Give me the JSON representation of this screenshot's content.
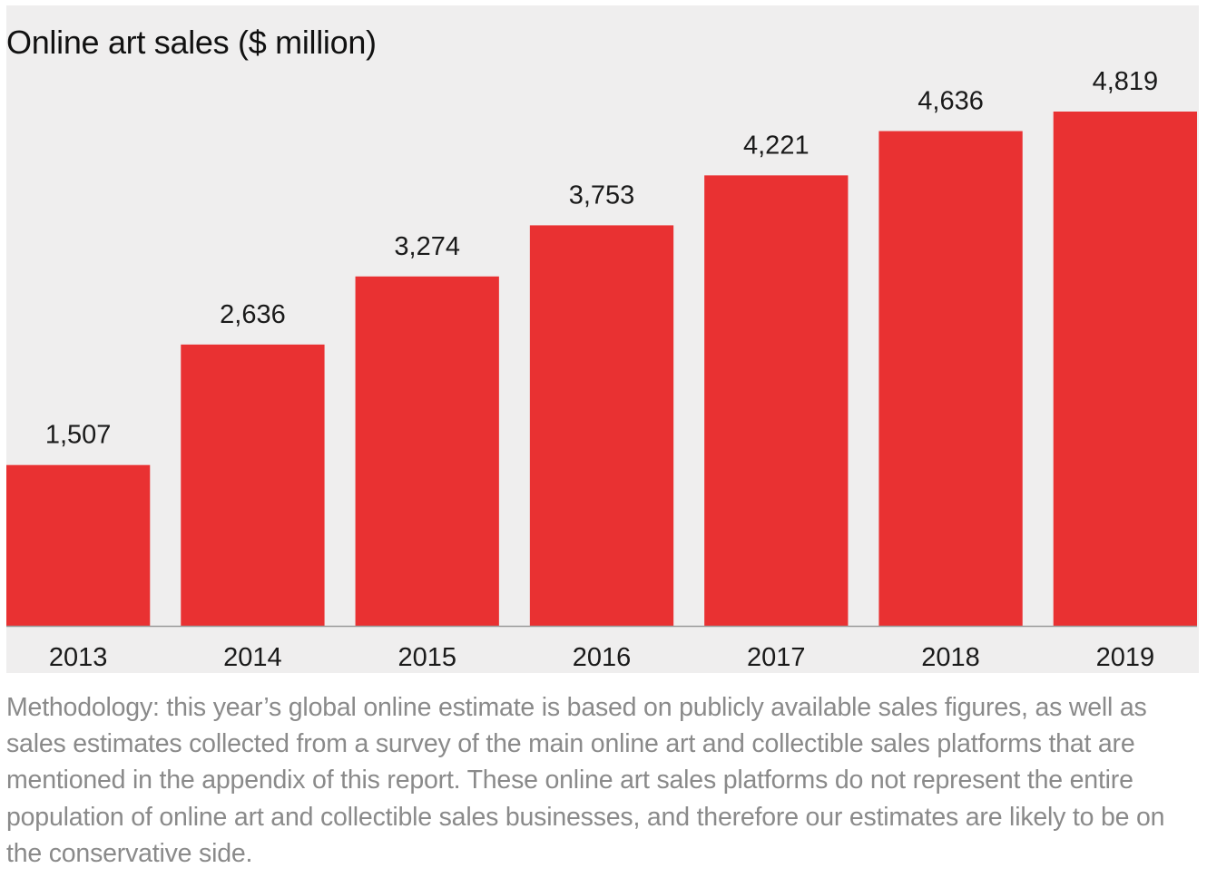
{
  "chart_data": {
    "type": "bar",
    "title": "Online art sales ($ million)",
    "categories": [
      "2013",
      "2014",
      "2015",
      "2016",
      "2017",
      "2018",
      "2019"
    ],
    "values": [
      1507,
      2636,
      3274,
      3753,
      4221,
      4636,
      4819
    ],
    "value_labels": [
      "1,507",
      "2,636",
      "3,274",
      "3,753",
      "4,221",
      "4,636",
      "4,819"
    ],
    "xlabel": "",
    "ylabel": "",
    "ylim": [
      0,
      4819
    ],
    "grid": false,
    "legend": "none",
    "colors": {
      "bar": "#e93132",
      "background": "#efeeee",
      "baseline": "#9a9a9a"
    }
  },
  "note": "Methodology: this year’s global online estimate is based on publicly available sales figures, as well as sales estimates collected from a survey of the main online art and collectible sales platforms that are mentioned in the appendix of this report. These online art sales platforms do not represent the entire population of online art and collectible sales businesses, and therefore our estimates are likely to be on the conservative side."
}
